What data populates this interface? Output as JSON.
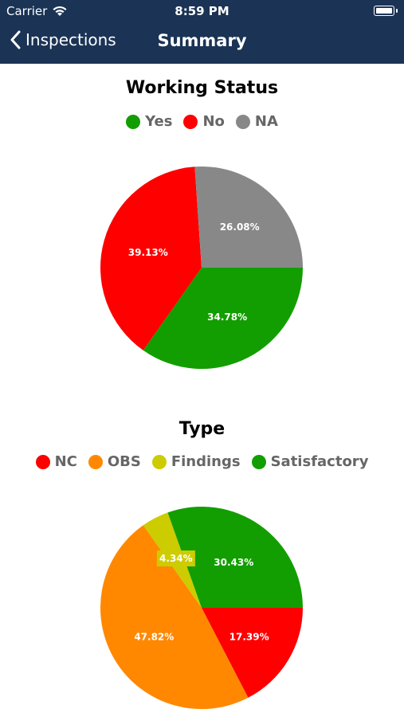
{
  "status_bar": {
    "carrier": "Carrier",
    "time": "8:59 PM"
  },
  "nav": {
    "back_label": "Inspections",
    "title": "Summary"
  },
  "charts": [
    {
      "title": "Working Status",
      "legend": [
        {
          "label": "Yes",
          "color": "#129e00"
        },
        {
          "label": "No",
          "color": "#ff0000"
        },
        {
          "label": "NA",
          "color": "#888888"
        }
      ]
    },
    {
      "title": "Type",
      "legend": [
        {
          "label": "NC",
          "color": "#ff0000"
        },
        {
          "label": "OBS",
          "color": "#ff8800"
        },
        {
          "label": "Findings",
          "color": "#cccc00"
        },
        {
          "label": "Satisfactory",
          "color": "#129e00"
        }
      ]
    }
  ],
  "chart_data": [
    {
      "type": "pie",
      "title": "Working Status",
      "legend": "top",
      "slices": [
        {
          "name": "Yes",
          "value": 34.78,
          "label": "34.78%",
          "color": "#129e00"
        },
        {
          "name": "No",
          "value": 39.13,
          "label": "39.13%",
          "color": "#ff0000"
        },
        {
          "name": "NA",
          "value": 26.08,
          "label": "26.08%",
          "color": "#888888"
        }
      ]
    },
    {
      "type": "pie",
      "title": "Type",
      "legend": "top",
      "slices": [
        {
          "name": "NC",
          "value": 17.39,
          "label": "17.39%",
          "color": "#ff0000"
        },
        {
          "name": "OBS",
          "value": 47.82,
          "label": "47.82%",
          "color": "#ff8800"
        },
        {
          "name": "Findings",
          "value": 4.34,
          "label": "4.34%",
          "color": "#cccc00"
        },
        {
          "name": "Satisfactory",
          "value": 30.43,
          "label": "30.43%",
          "color": "#129e00"
        }
      ]
    }
  ]
}
